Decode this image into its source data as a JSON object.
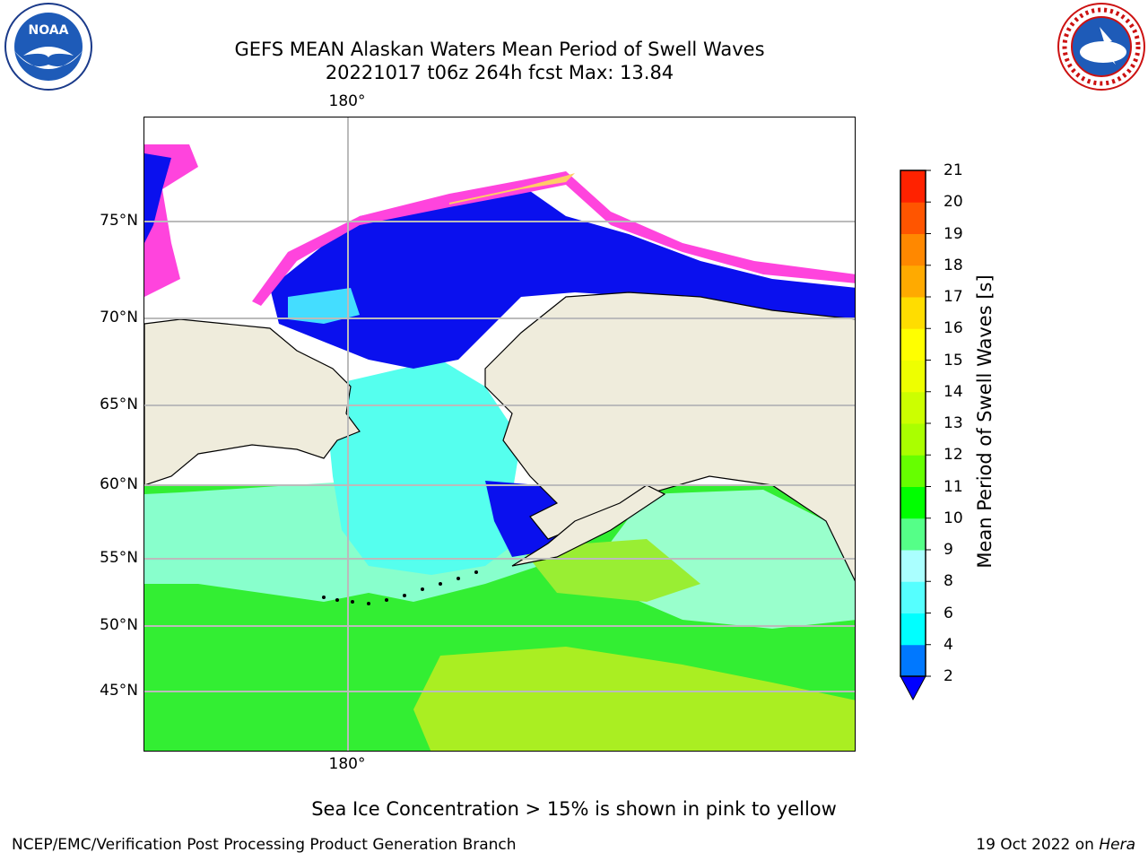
{
  "title": {
    "line1": "GEFS MEAN Alaskan Waters Mean Period of Swell Waves",
    "line2": "20221017 t06z 264h fcst   Max: 13.84"
  },
  "logos": {
    "left": {
      "name": "noaa-logo",
      "text": "NOAA"
    },
    "right": {
      "name": "nws-logo",
      "text": "NATIONAL WEATHER SERVICE"
    }
  },
  "map": {
    "lon_labels": {
      "top": "180°",
      "bottom": "180°"
    },
    "lat_labels": [
      "75°N",
      "70°N",
      "65°N",
      "60°N",
      "55°N",
      "50°N",
      "45°N"
    ],
    "land_color": "#efecdc",
    "ice_colors": [
      "#ff00ff",
      "#ff66cc",
      "#ffaa66",
      "#ffdd55"
    ]
  },
  "colorbar": {
    "label": "Mean Period of Swell Waves [s]",
    "ticks": [
      "2",
      "4",
      "6",
      "8",
      "9",
      "10",
      "11",
      "12",
      "13",
      "14",
      "15",
      "16",
      "17",
      "18",
      "19",
      "20",
      "21"
    ],
    "colors": [
      "#0000ff",
      "#0078ff",
      "#00ffff",
      "#55ffff",
      "#aaffff",
      "#55ff88",
      "#00ff00",
      "#66ff00",
      "#aaff00",
      "#ccff00",
      "#eeff00",
      "#ffff00",
      "#ffdd00",
      "#ffaa00",
      "#ff8800",
      "#ff5500",
      "#ff2200",
      "#ff0000"
    ]
  },
  "notes": {
    "ice": "Sea Ice Concentration > 15% is shown in pink to yellow"
  },
  "footer": {
    "left": "NCEP/EMC/Verification Post Processing Product Generation Branch",
    "right_date": "19 Oct 2022 on",
    "right_host": "Hera"
  }
}
